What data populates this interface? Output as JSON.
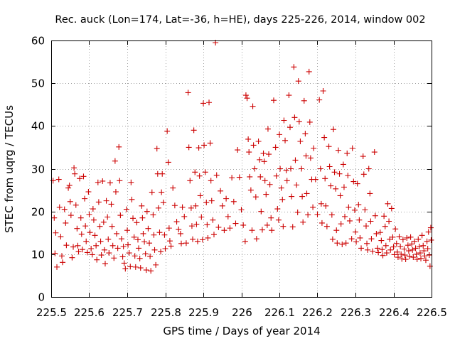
{
  "chart_data": {
    "type": "scatter",
    "title": "Rec. auck (Lon=174, Lat=-36, h=HE), days 225-226, 2014, window 002",
    "xlabel": "GPS time / Days of year 2014",
    "ylabel": "STEC from uqrg / TECUs",
    "xlim": [
      225.5,
      226.5
    ],
    "ylim": [
      0,
      60
    ],
    "grid": true,
    "marker": "+",
    "marker_color": "#cc0000",
    "x_ticks": [
      225.5,
      225.6,
      225.7,
      225.8,
      225.9,
      226.0,
      226.1,
      226.2,
      226.3,
      226.4,
      226.5
    ],
    "x_tick_labels": [
      "225.5",
      "225.6",
      "225.7",
      "225.8",
      "225.9",
      "226",
      "226.1",
      "226.2",
      "226.3",
      "226.4",
      "226.5"
    ],
    "y_ticks": [
      0,
      10,
      20,
      30,
      40,
      50,
      60
    ],
    "y_tick_labels": [
      "0",
      "10",
      "20",
      "30",
      "40",
      "50",
      "60"
    ],
    "points": [
      [
        225.505,
        27.2
      ],
      [
        225.508,
        18.5
      ],
      [
        225.51,
        10.2
      ],
      [
        225.512,
        15.0
      ],
      [
        225.515,
        7.0
      ],
      [
        225.52,
        27.5
      ],
      [
        225.522,
        21.0
      ],
      [
        225.525,
        14.1
      ],
      [
        225.528,
        9.6
      ],
      [
        225.53,
        8.1
      ],
      [
        225.535,
        20.5
      ],
      [
        225.538,
        17.3
      ],
      [
        225.54,
        12.1
      ],
      [
        225.545,
        25.5
      ],
      [
        225.548,
        26.1
      ],
      [
        225.55,
        22.3
      ],
      [
        225.552,
        19.1
      ],
      [
        225.555,
        9.2
      ],
      [
        225.558,
        11.7
      ],
      [
        225.56,
        30.2
      ],
      [
        225.562,
        28.8
      ],
      [
        225.565,
        21.5
      ],
      [
        225.568,
        16.0
      ],
      [
        225.57,
        12.0
      ],
      [
        225.572,
        10.6
      ],
      [
        225.575,
        27.7
      ],
      [
        225.578,
        18.5
      ],
      [
        225.58,
        14.7
      ],
      [
        225.582,
        11.1
      ],
      [
        225.585,
        28.2
      ],
      [
        225.588,
        23.0
      ],
      [
        225.59,
        16.6
      ],
      [
        225.592,
        13.0
      ],
      [
        225.595,
        10.4
      ],
      [
        225.598,
        24.6
      ],
      [
        225.6,
        19.3
      ],
      [
        225.602,
        15.1
      ],
      [
        225.605,
        11.3
      ],
      [
        225.608,
        9.9
      ],
      [
        225.61,
        20.6
      ],
      [
        225.612,
        18.0
      ],
      [
        225.615,
        14.4
      ],
      [
        225.618,
        12.0
      ],
      [
        225.62,
        8.7
      ],
      [
        225.623,
        26.8
      ],
      [
        225.625,
        22.2
      ],
      [
        225.628,
        16.5
      ],
      [
        225.63,
        13.0
      ],
      [
        225.632,
        9.8
      ],
      [
        225.635,
        27.1
      ],
      [
        225.638,
        17.5
      ],
      [
        225.64,
        11.0
      ],
      [
        225.642,
        7.8
      ],
      [
        225.645,
        22.5
      ],
      [
        225.648,
        18.7
      ],
      [
        225.65,
        13.5
      ],
      [
        225.652,
        10.3
      ],
      [
        225.655,
        26.7
      ],
      [
        225.658,
        21.7
      ],
      [
        225.66,
        16.5
      ],
      [
        225.662,
        12.0
      ],
      [
        225.665,
        9.1
      ],
      [
        225.668,
        31.8
      ],
      [
        225.67,
        24.6
      ],
      [
        225.672,
        14.8
      ],
      [
        225.675,
        11.4
      ],
      [
        225.678,
        35.1
      ],
      [
        225.68,
        27.2
      ],
      [
        225.682,
        19.1
      ],
      [
        225.685,
        13.6
      ],
      [
        225.688,
        9.4
      ],
      [
        225.69,
        11.8
      ],
      [
        225.692,
        7.9
      ],
      [
        225.695,
        6.6
      ],
      [
        225.698,
        20.5
      ],
      [
        225.7,
        15.6
      ],
      [
        225.702,
        12.2
      ],
      [
        225.705,
        10.3
      ],
      [
        225.708,
        7.1
      ],
      [
        225.71,
        26.8
      ],
      [
        225.712,
        22.8
      ],
      [
        225.715,
        18.4
      ],
      [
        225.718,
        14.0
      ],
      [
        225.72,
        9.6
      ],
      [
        225.722,
        7.0
      ],
      [
        225.725,
        17.4
      ],
      [
        225.728,
        13.4
      ],
      [
        225.73,
        11.4
      ],
      [
        225.733,
        9.0
      ],
      [
        225.735,
        6.8
      ],
      [
        225.738,
        21.3
      ],
      [
        225.74,
        18.5
      ],
      [
        225.742,
        14.8
      ],
      [
        225.745,
        12.9
      ],
      [
        225.748,
        10.1
      ],
      [
        225.75,
        6.3
      ],
      [
        225.752,
        20.0
      ],
      [
        225.755,
        16.0
      ],
      [
        225.758,
        12.6
      ],
      [
        225.76,
        9.5
      ],
      [
        225.762,
        6.1
      ],
      [
        225.765,
        24.5
      ],
      [
        225.768,
        19.2
      ],
      [
        225.77,
        14.5
      ],
      [
        225.772,
        11.0
      ],
      [
        225.775,
        7.5
      ],
      [
        225.778,
        34.7
      ],
      [
        225.78,
        28.8
      ],
      [
        225.782,
        20.8
      ],
      [
        225.785,
        15.1
      ],
      [
        225.788,
        10.6
      ],
      [
        225.79,
        24.5
      ],
      [
        225.792,
        28.8
      ],
      [
        225.795,
        22.1
      ],
      [
        225.798,
        14.5
      ],
      [
        225.8,
        11.3
      ],
      [
        225.805,
        38.8
      ],
      [
        225.808,
        31.5
      ],
      [
        225.81,
        16.1
      ],
      [
        225.812,
        13.1
      ],
      [
        225.815,
        11.9
      ],
      [
        225.82,
        25.5
      ],
      [
        225.825,
        21.4
      ],
      [
        225.83,
        17.6
      ],
      [
        225.835,
        15.8
      ],
      [
        225.84,
        14.8
      ],
      [
        225.842,
        12.5
      ],
      [
        225.845,
        21.0
      ],
      [
        225.85,
        18.8
      ],
      [
        225.855,
        12.6
      ],
      [
        225.86,
        47.8
      ],
      [
        225.862,
        35.0
      ],
      [
        225.865,
        27.2
      ],
      [
        225.868,
        20.8
      ],
      [
        225.87,
        16.6
      ],
      [
        225.872,
        13.5
      ],
      [
        225.875,
        39.0
      ],
      [
        225.878,
        29.2
      ],
      [
        225.88,
        21.3
      ],
      [
        225.882,
        17.0
      ],
      [
        225.885,
        13.0
      ],
      [
        225.888,
        34.9
      ],
      [
        225.89,
        28.3
      ],
      [
        225.892,
        23.7
      ],
      [
        225.895,
        18.7
      ],
      [
        225.898,
        13.4
      ],
      [
        225.9,
        45.3
      ],
      [
        225.902,
        35.5
      ],
      [
        225.905,
        29.2
      ],
      [
        225.908,
        22.1
      ],
      [
        225.91,
        16.9
      ],
      [
        225.912,
        13.8
      ],
      [
        225.915,
        45.5
      ],
      [
        225.918,
        36.0
      ],
      [
        225.92,
        27.2
      ],
      [
        225.922,
        22.5
      ],
      [
        225.925,
        18.0
      ],
      [
        225.928,
        14.6
      ],
      [
        225.932,
        59.5
      ],
      [
        225.935,
        28.5
      ],
      [
        225.94,
        16.3
      ],
      [
        225.945,
        24.8
      ],
      [
        225.95,
        21.3
      ],
      [
        225.955,
        15.6
      ],
      [
        225.96,
        23.0
      ],
      [
        225.965,
        18.8
      ],
      [
        225.97,
        16.1
      ],
      [
        225.975,
        27.9
      ],
      [
        225.98,
        22.3
      ],
      [
        225.985,
        17.2
      ],
      [
        225.99,
        34.4
      ],
      [
        225.995,
        28.0
      ],
      [
        226.0,
        20.4
      ],
      [
        226.005,
        16.8
      ],
      [
        226.01,
        13.0
      ],
      [
        226.012,
        47.2
      ],
      [
        226.015,
        46.5
      ],
      [
        226.018,
        36.9
      ],
      [
        226.02,
        33.9
      ],
      [
        226.022,
        28.1
      ],
      [
        226.025,
        25.0
      ],
      [
        226.028,
        15.6
      ],
      [
        226.03,
        44.6
      ],
      [
        226.032,
        35.5
      ],
      [
        226.035,
        30.0
      ],
      [
        226.038,
        23.4
      ],
      [
        226.04,
        13.6
      ],
      [
        226.045,
        36.4
      ],
      [
        226.048,
        32.1
      ],
      [
        226.05,
        28.1
      ],
      [
        226.052,
        20.0
      ],
      [
        226.055,
        15.7
      ],
      [
        226.058,
        33.6
      ],
      [
        226.06,
        31.7
      ],
      [
        226.062,
        27.2
      ],
      [
        226.065,
        24.0
      ],
      [
        226.068,
        16.8
      ],
      [
        226.07,
        39.3
      ],
      [
        226.072,
        33.4
      ],
      [
        226.075,
        26.3
      ],
      [
        226.078,
        18.5
      ],
      [
        226.08,
        15.6
      ],
      [
        226.085,
        46.0
      ],
      [
        226.09,
        35.0
      ],
      [
        226.092,
        28.3
      ],
      [
        226.095,
        20.6
      ],
      [
        226.098,
        18.0
      ],
      [
        226.1,
        38.0
      ],
      [
        226.102,
        30.0
      ],
      [
        226.105,
        25.5
      ],
      [
        226.108,
        22.8
      ],
      [
        226.11,
        16.5
      ],
      [
        226.112,
        41.3
      ],
      [
        226.115,
        36.6
      ],
      [
        226.118,
        29.6
      ],
      [
        226.12,
        27.2
      ],
      [
        226.125,
        47.2
      ],
      [
        226.128,
        39.7
      ],
      [
        226.13,
        30.0
      ],
      [
        226.132,
        23.5
      ],
      [
        226.135,
        16.4
      ],
      [
        226.138,
        53.8
      ],
      [
        226.14,
        42.0
      ],
      [
        226.142,
        32.0
      ],
      [
        226.145,
        26.2
      ],
      [
        226.148,
        19.8
      ],
      [
        226.15,
        50.5
      ],
      [
        226.152,
        41.0
      ],
      [
        226.155,
        36.4
      ],
      [
        226.158,
        30.0
      ],
      [
        226.16,
        23.5
      ],
      [
        226.162,
        17.5
      ],
      [
        226.165,
        45.9
      ],
      [
        226.168,
        38.2
      ],
      [
        226.17,
        33.0
      ],
      [
        226.172,
        24.2
      ],
      [
        226.175,
        19.2
      ],
      [
        226.178,
        52.7
      ],
      [
        226.18,
        40.9
      ],
      [
        226.182,
        32.5
      ],
      [
        226.185,
        27.5
      ],
      [
        226.188,
        21.0
      ],
      [
        226.19,
        34.8
      ],
      [
        226.195,
        27.5
      ],
      [
        226.2,
        19.3
      ],
      [
        226.205,
        46.1
      ],
      [
        226.208,
        30.0
      ],
      [
        226.21,
        21.8
      ],
      [
        226.212,
        17.3
      ],
      [
        226.215,
        48.2
      ],
      [
        226.218,
        37.3
      ],
      [
        226.22,
        27.7
      ],
      [
        226.222,
        21.3
      ],
      [
        226.225,
        16.5
      ],
      [
        226.23,
        35.2
      ],
      [
        226.232,
        30.5
      ],
      [
        226.235,
        26.0
      ],
      [
        226.238,
        19.2
      ],
      [
        226.24,
        13.5
      ],
      [
        226.242,
        39.2
      ],
      [
        226.245,
        29.2
      ],
      [
        226.248,
        25.3
      ],
      [
        226.25,
        15.6
      ],
      [
        226.252,
        12.6
      ],
      [
        226.255,
        34.3
      ],
      [
        226.258,
        28.8
      ],
      [
        226.26,
        23.7
      ],
      [
        226.262,
        17.1
      ],
      [
        226.265,
        12.3
      ],
      [
        226.268,
        31.0
      ],
      [
        226.27,
        25.7
      ],
      [
        226.272,
        18.8
      ],
      [
        226.275,
        12.6
      ],
      [
        226.278,
        33.6
      ],
      [
        226.28,
        28.4
      ],
      [
        226.282,
        21.0
      ],
      [
        226.285,
        17.8
      ],
      [
        226.29,
        13.6
      ],
      [
        226.292,
        34.8
      ],
      [
        226.295,
        27.0
      ],
      [
        226.298,
        20.3
      ],
      [
        226.3,
        15.2
      ],
      [
        226.302,
        12.9
      ],
      [
        226.305,
        26.5
      ],
      [
        226.308,
        21.6
      ],
      [
        226.31,
        18.0
      ],
      [
        226.312,
        13.8
      ],
      [
        226.315,
        11.4
      ],
      [
        226.32,
        32.9
      ],
      [
        226.322,
        28.7
      ],
      [
        226.325,
        20.4
      ],
      [
        226.328,
        16.6
      ],
      [
        226.33,
        12.5
      ],
      [
        226.332,
        11.0
      ],
      [
        226.335,
        30.0
      ],
      [
        226.338,
        24.2
      ],
      [
        226.34,
        17.7
      ],
      [
        226.342,
        13.6
      ],
      [
        226.345,
        10.7
      ],
      [
        226.35,
        33.9
      ],
      [
        226.352,
        19.0
      ],
      [
        226.355,
        14.8
      ],
      [
        226.358,
        11.4
      ],
      [
        226.36,
        10.4
      ],
      [
        226.365,
        15.1
      ],
      [
        226.368,
        13.2
      ],
      [
        226.37,
        11.1
      ],
      [
        226.372,
        9.7
      ],
      [
        226.375,
        18.9
      ],
      [
        226.378,
        16.5
      ],
      [
        226.38,
        12.0
      ],
      [
        226.382,
        10.3
      ],
      [
        226.385,
        21.8
      ],
      [
        226.388,
        17.7
      ],
      [
        226.39,
        13.5
      ],
      [
        226.392,
        11.0
      ],
      [
        226.395,
        20.7
      ],
      [
        226.398,
        14.0
      ],
      [
        226.4,
        11.7
      ],
      [
        226.402,
        9.9
      ],
      [
        226.405,
        15.9
      ],
      [
        226.408,
        12.5
      ],
      [
        226.41,
        10.5
      ],
      [
        226.412,
        9.3
      ],
      [
        226.415,
        14.1
      ],
      [
        226.418,
        11.8
      ],
      [
        226.42,
        10.0
      ],
      [
        226.422,
        8.9
      ],
      [
        226.425,
        13.4
      ],
      [
        226.428,
        11.2
      ],
      [
        226.43,
        9.8
      ],
      [
        226.432,
        8.8
      ],
      [
        226.435,
        13.8
      ],
      [
        226.438,
        12.1
      ],
      [
        226.44,
        10.8
      ],
      [
        226.442,
        9.5
      ],
      [
        226.445,
        14.0
      ],
      [
        226.448,
        12.4
      ],
      [
        226.45,
        11.0
      ],
      [
        226.452,
        9.3
      ],
      [
        226.455,
        13.0
      ],
      [
        226.458,
        11.4
      ],
      [
        226.46,
        10.0
      ],
      [
        226.462,
        8.8
      ],
      [
        226.465,
        13.5
      ],
      [
        226.468,
        11.8
      ],
      [
        226.47,
        10.3
      ],
      [
        226.472,
        9.0
      ],
      [
        226.475,
        14.4
      ],
      [
        226.478,
        12.0
      ],
      [
        226.48,
        10.8
      ],
      [
        226.482,
        9.6
      ],
      [
        226.485,
        8.6
      ],
      [
        226.488,
        13.0
      ],
      [
        226.49,
        11.3
      ],
      [
        226.492,
        15.2
      ],
      [
        226.494,
        9.8
      ],
      [
        226.496,
        7.2
      ],
      [
        226.498,
        16.2
      ],
      [
        226.499,
        13.3
      ]
    ]
  }
}
